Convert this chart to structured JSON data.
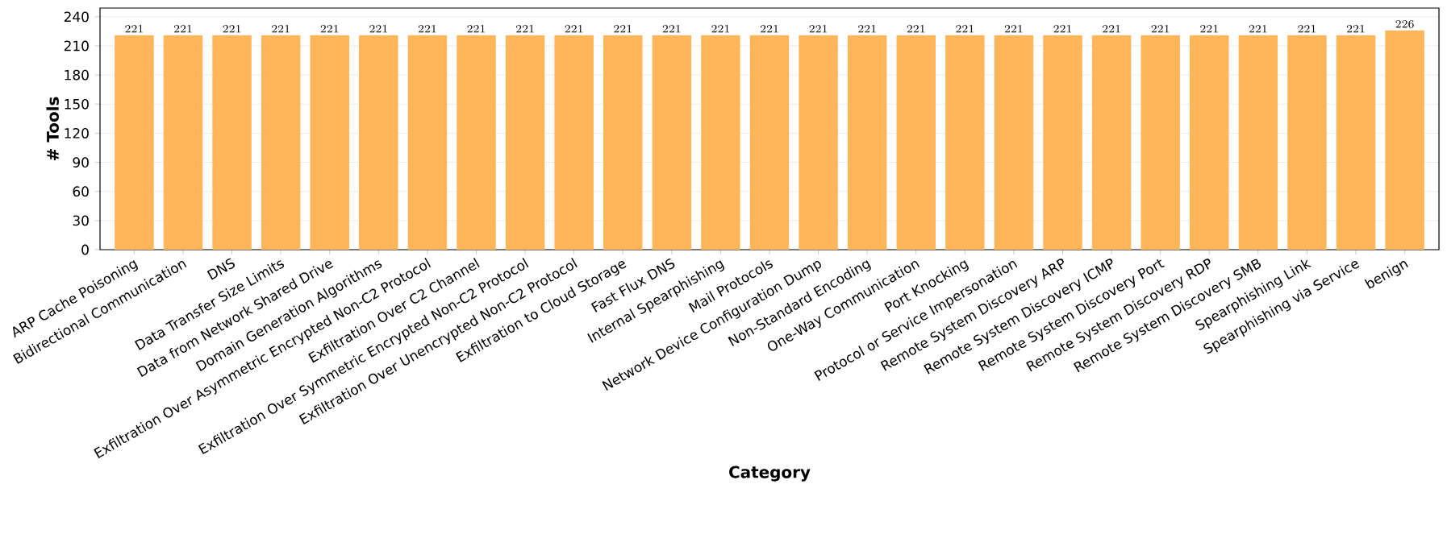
{
  "chart_data": {
    "type": "bar",
    "xlabel": "Category",
    "ylabel": "# Tools",
    "categories": [
      "ARP Cache Poisoning",
      "Bidirectional Communication",
      "DNS",
      "Data Transfer Size Limits",
      "Data from Network Shared Drive",
      "Domain Generation Algorithms",
      "Exfiltration Over Asymmetric Encrypted Non-C2 Protocol",
      "Exfiltration Over C2 Channel",
      "Exfiltration Over Symmetric Encrypted Non-C2 Protocol",
      "Exfiltration Over Unencrypted Non-C2 Protocol",
      "Exfiltration to Cloud Storage",
      "Fast Flux DNS",
      "Internal Spearphishing",
      "Mail Protocols",
      "Network Device Configuration Dump",
      "Non-Standard Encoding",
      "One-Way Communication",
      "Port Knocking",
      "Protocol or Service Impersonation",
      "Remote System Discovery ARP",
      "Remote System Discovery ICMP",
      "Remote System Discovery Port",
      "Remote System Discovery RDP",
      "Remote System Discovery SMB",
      "Spearphishing Link",
      "Spearphishing via Service",
      "benign"
    ],
    "values": [
      221,
      221,
      221,
      221,
      221,
      221,
      221,
      221,
      221,
      221,
      221,
      221,
      221,
      221,
      221,
      221,
      221,
      221,
      221,
      221,
      221,
      221,
      221,
      221,
      221,
      221,
      226
    ],
    "color": "#ffb55a",
    "ylim": [
      0,
      249
    ],
    "yticks": [
      0,
      30,
      60,
      90,
      120,
      150,
      180,
      210,
      240
    ],
    "grid": "y",
    "data_labels": true
  }
}
